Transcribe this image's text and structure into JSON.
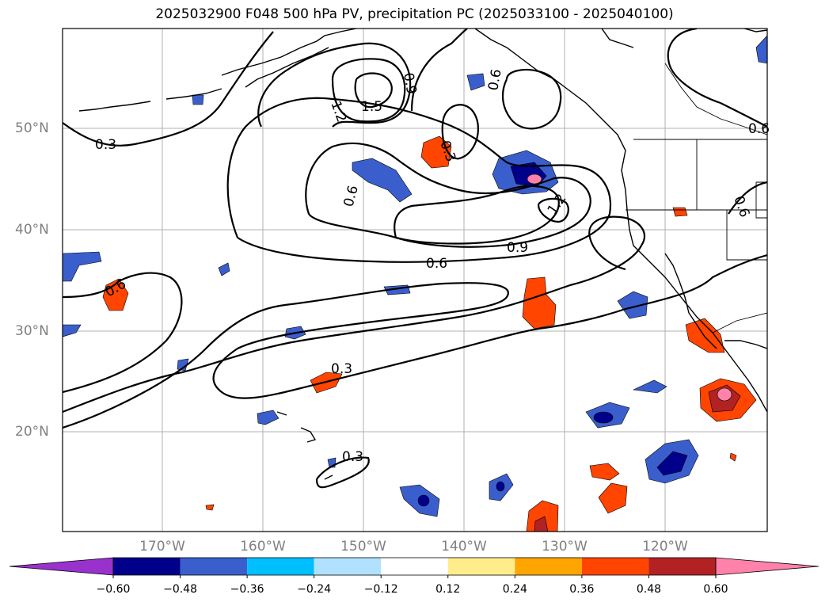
{
  "title": "2025032900 F048 500 hPa PV, precipitation PC (2025033100 - 2025040100)",
  "lat_labels": [
    "50°N",
    "40°N",
    "30°N",
    "20°N"
  ],
  "lon_labels": [
    "170°W",
    "160°W",
    "150°W",
    "140°W",
    "130°W",
    "120°W"
  ],
  "contour_labels": [
    "0.3",
    "1.2",
    "1.5",
    "0.9",
    "0.6",
    "0.3",
    "0.6",
    "0.6",
    "1.2",
    "0.9",
    "0.6",
    "0.6",
    "0.3",
    "0.3",
    "0.6"
  ],
  "colorbar": {
    "ticks": [
      "−0.60",
      "−0.48",
      "−0.36",
      "−0.24",
      "−0.12",
      "0.12",
      "0.24",
      "0.36",
      "0.48",
      "0.60"
    ],
    "colors": [
      "#9932cc",
      "#00008b",
      "#3a5fcd",
      "#00bfff",
      "#b0e2ff",
      "#ffffff",
      "#ffec8b",
      "#ffa500",
      "#ff4500",
      "#b22222",
      "#ff82ab"
    ]
  }
}
